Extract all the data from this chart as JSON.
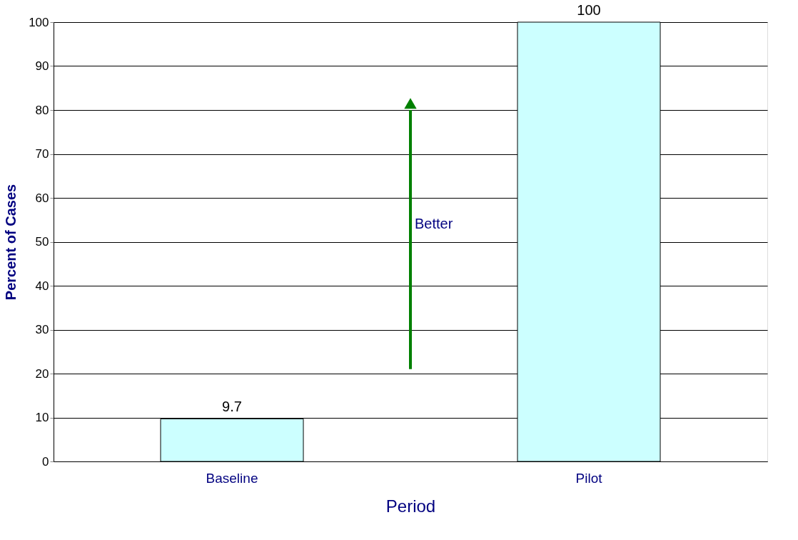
{
  "chart_data": {
    "type": "bar",
    "categories": [
      "Baseline",
      "Pilot"
    ],
    "values": [
      9.7,
      100
    ],
    "color": "#ccffff",
    "xlabel": "Period",
    "ylabel": "Percent of Cases",
    "ylim": [
      0,
      100
    ],
    "yticks": [
      0,
      10,
      20,
      30,
      40,
      50,
      60,
      70,
      80,
      90,
      100
    ],
    "grid": "y",
    "data_labels": true,
    "annotations": [
      "Better"
    ]
  }
}
